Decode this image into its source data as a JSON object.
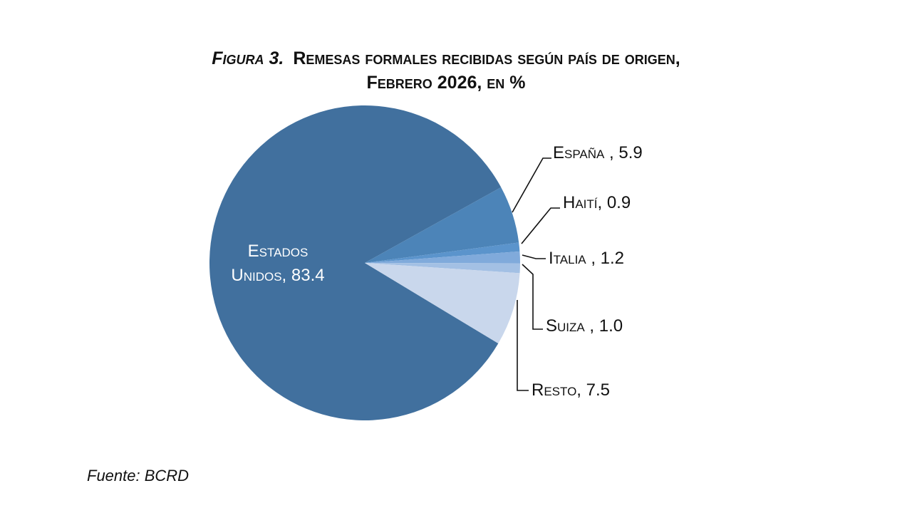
{
  "chart_data": {
    "type": "pie",
    "title_prefix": "Figura 3.",
    "title_line1": "Remesas formales recibidas según país de origen,",
    "title_line2": "Febrero 2026, en %",
    "slices": [
      {
        "name": "Estados Unidos",
        "label": "Estados Unidos, 83.4",
        "label_line1": "Estados",
        "label_line2": "Unidos, 83.4",
        "value": 83.4,
        "color": "#41709e"
      },
      {
        "name": "España",
        "label": "España , 5.9",
        "value": 5.9,
        "color": "#4c84b8"
      },
      {
        "name": "Haití",
        "label": "Haití, 0.9",
        "value": 0.9,
        "color": "#5b94cc"
      },
      {
        "name": "Italia",
        "label": "Italia , 1.2",
        "value": 1.2,
        "color": "#80aadb"
      },
      {
        "name": "Suiza",
        "label": "Suiza , 1.0",
        "value": 1.0,
        "color": "#a3c0e4"
      },
      {
        "name": "Resto",
        "label": "Resto, 7.5",
        "value": 7.5,
        "color": "#c9d7ec"
      }
    ],
    "source": "Fuente: BCRD"
  }
}
